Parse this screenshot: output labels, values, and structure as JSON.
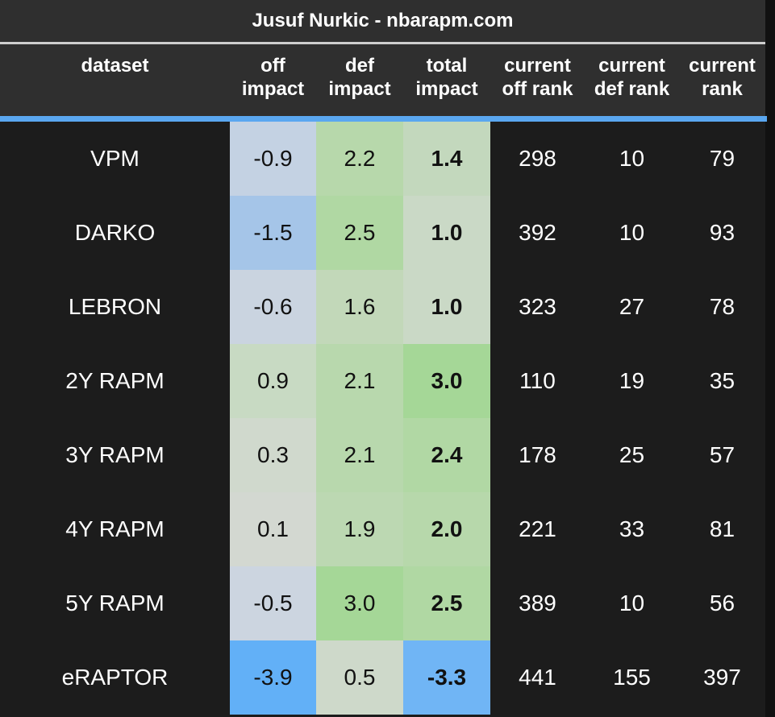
{
  "chart_data": {
    "type": "table",
    "title": "Jusuf Nurkic - nbarapm.com",
    "columns": [
      {
        "key": "dataset",
        "line1": "dataset",
        "line2": ""
      },
      {
        "key": "off",
        "line1": "off",
        "line2": "impact"
      },
      {
        "key": "def",
        "line1": "def",
        "line2": "impact"
      },
      {
        "key": "total",
        "line1": "total",
        "line2": "impact"
      },
      {
        "key": "off_rank",
        "line1": "current",
        "line2": "off rank"
      },
      {
        "key": "def_rank",
        "line1": "current",
        "line2": "def rank"
      },
      {
        "key": "rank",
        "line1": "current",
        "line2": "rank"
      }
    ],
    "rows": [
      {
        "dataset": "VPM",
        "off": "-0.9",
        "def": "2.2",
        "total": "1.4",
        "off_rank": "298",
        "def_rank": "10",
        "rank": "79",
        "colors": {
          "off": "#c4d2e3",
          "def": "#b7d8ab",
          "total": "#c3d8bd"
        }
      },
      {
        "dataset": "DARKO",
        "off": "-1.5",
        "def": "2.5",
        "total": "1.0",
        "off_rank": "392",
        "def_rank": "10",
        "rank": "93",
        "colors": {
          "off": "#a5c5e8",
          "def": "#b0d8a3",
          "total": "#cad9c6"
        }
      },
      {
        "dataset": "LEBRON",
        "off": "-0.6",
        "def": "1.6",
        "total": "1.0",
        "off_rank": "323",
        "def_rank": "27",
        "rank": "78",
        "colors": {
          "off": "#cad4e0",
          "def": "#c2d8b9",
          "total": "#cad9c6"
        }
      },
      {
        "dataset": "2Y RAPM",
        "off": "0.9",
        "def": "2.1",
        "total": "3.0",
        "off_rank": "110",
        "def_rank": "19",
        "rank": "35",
        "colors": {
          "off": "#c8dac3",
          "def": "#b8d8ad",
          "total": "#a5d797"
        }
      },
      {
        "dataset": "3Y RAPM",
        "off": "0.3",
        "def": "2.1",
        "total": "2.4",
        "off_rank": "178",
        "def_rank": "25",
        "rank": "57",
        "colors": {
          "off": "#d0d9cd",
          "def": "#b8d8ad",
          "total": "#b1d8a4"
        }
      },
      {
        "dataset": "4Y RAPM",
        "off": "0.1",
        "def": "1.9",
        "total": "2.0",
        "off_rank": "221",
        "def_rank": "33",
        "rank": "81",
        "colors": {
          "off": "#d3d8d1",
          "def": "#bcd8b2",
          "total": "#b7d8ab"
        }
      },
      {
        "dataset": "5Y RAPM",
        "off": "-0.5",
        "def": "3.0",
        "total": "2.5",
        "off_rank": "389",
        "def_rank": "10",
        "rank": "56",
        "colors": {
          "off": "#ccd5e0",
          "def": "#a5d797",
          "total": "#b0d8a3"
        }
      },
      {
        "dataset": "eRAPTOR",
        "off": "-3.9",
        "def": "0.5",
        "total": "-3.3",
        "off_rank": "441",
        "def_rank": "155",
        "rank": "397",
        "colors": {
          "off": "#62b0f7",
          "def": "#ced9ca",
          "total": "#70b5f5"
        }
      }
    ]
  }
}
